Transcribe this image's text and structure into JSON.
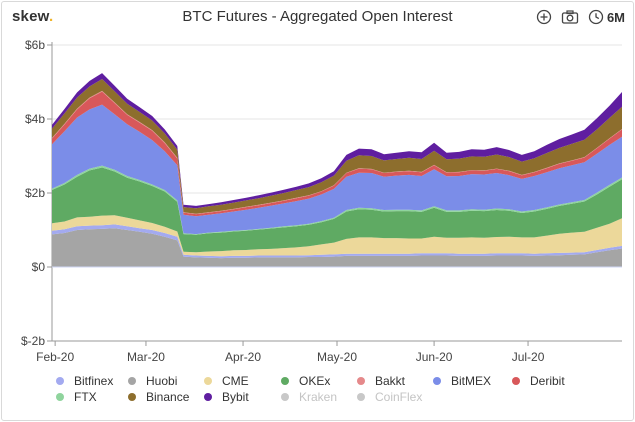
{
  "header": {
    "logo": "skew",
    "logo_dot": ".",
    "title": "BTC Futures - Aggregated Open Interest",
    "period": "6M",
    "icons": [
      "plus-circle-icon",
      "camera-icon",
      "clock-icon"
    ]
  },
  "legend": {
    "rows": [
      [
        {
          "label": "Bitfinex",
          "color": "#a3aaf0",
          "disabled": false
        },
        {
          "label": "Huobi",
          "color": "#a5a5a5",
          "disabled": false
        },
        {
          "label": "CME",
          "color": "#ecd89a",
          "disabled": false
        },
        {
          "label": "OKEx",
          "color": "#5faa63",
          "disabled": false
        },
        {
          "label": "Bakkt",
          "color": "#e5898b",
          "disabled": false
        },
        {
          "label": "BitMEX",
          "color": "#7b8de8",
          "disabled": false
        },
        {
          "label": "Deribit",
          "color": "#d8585a",
          "disabled": false
        }
      ],
      [
        {
          "label": "FTX",
          "color": "#8fd49d",
          "disabled": false
        },
        {
          "label": "Binance",
          "color": "#8d6e2d",
          "disabled": false
        },
        {
          "label": "Bybit",
          "color": "#5f1ea0",
          "disabled": false
        },
        {
          "label": "Kraken",
          "color": "#c8c8c8",
          "disabled": true
        },
        {
          "label": "CoinFlex",
          "color": "#c8c8c8",
          "disabled": true
        }
      ]
    ]
  },
  "chart_data": {
    "type": "area",
    "stacked": true,
    "title": "BTC Futures - Aggregated Open Interest",
    "xlabel": "",
    "ylabel": "",
    "x": [
      "2020-01-31",
      "2020-02-04",
      "2020-02-08",
      "2020-02-12",
      "2020-02-16",
      "2020-02-20",
      "2020-02-24",
      "2020-02-28",
      "2020-03-03",
      "2020-03-07",
      "2020-03-11",
      "2020-03-13",
      "2020-03-17",
      "2020-03-21",
      "2020-03-25",
      "2020-03-29",
      "2020-04-02",
      "2020-04-06",
      "2020-04-10",
      "2020-04-14",
      "2020-04-18",
      "2020-04-22",
      "2020-04-26",
      "2020-04-30",
      "2020-05-04",
      "2020-05-08",
      "2020-05-12",
      "2020-05-16",
      "2020-05-20",
      "2020-05-24",
      "2020-05-28",
      "2020-06-01",
      "2020-06-05",
      "2020-06-09",
      "2020-06-13",
      "2020-06-17",
      "2020-06-21",
      "2020-06-25",
      "2020-06-29",
      "2020-07-03",
      "2020-07-07",
      "2020-07-11",
      "2020-07-15",
      "2020-07-19",
      "2020-07-23",
      "2020-07-27",
      "2020-07-31"
    ],
    "x_ticks": [
      "Feb-20",
      "Mar-20",
      "Apr-20",
      "May-20",
      "Jun-20",
      "Jul-20"
    ],
    "y_ticks": [
      "$6b",
      "$4b",
      "$2b",
      "$0",
      "$-2b"
    ],
    "ylim": [
      -2,
      6
    ],
    "units": "USD billions",
    "grid": true,
    "legend_position": "bottom",
    "series": [
      {
        "name": "Huobi",
        "values": [
          0.88,
          0.92,
          1.0,
          1.02,
          1.03,
          1.05,
          1.0,
          0.95,
          0.9,
          0.82,
          0.72,
          0.28,
          0.26,
          0.25,
          0.24,
          0.25,
          0.25,
          0.26,
          0.26,
          0.26,
          0.26,
          0.27,
          0.27,
          0.28,
          0.3,
          0.3,
          0.3,
          0.3,
          0.3,
          0.3,
          0.31,
          0.31,
          0.31,
          0.3,
          0.3,
          0.3,
          0.31,
          0.31,
          0.31,
          0.3,
          0.31,
          0.32,
          0.33,
          0.34,
          0.4,
          0.45,
          0.5
        ]
      },
      {
        "name": "Bitfinex",
        "values": [
          0.1,
          0.1,
          0.1,
          0.1,
          0.1,
          0.1,
          0.1,
          0.1,
          0.1,
          0.1,
          0.1,
          0.05,
          0.05,
          0.05,
          0.05,
          0.05,
          0.05,
          0.05,
          0.05,
          0.05,
          0.05,
          0.05,
          0.06,
          0.06,
          0.06,
          0.06,
          0.06,
          0.06,
          0.06,
          0.06,
          0.06,
          0.06,
          0.06,
          0.06,
          0.06,
          0.06,
          0.06,
          0.06,
          0.06,
          0.06,
          0.06,
          0.06,
          0.06,
          0.06,
          0.06,
          0.07,
          0.07
        ]
      },
      {
        "name": "CME",
        "values": [
          0.2,
          0.21,
          0.24,
          0.24,
          0.26,
          0.25,
          0.23,
          0.21,
          0.19,
          0.17,
          0.14,
          0.08,
          0.09,
          0.12,
          0.14,
          0.15,
          0.16,
          0.17,
          0.18,
          0.2,
          0.22,
          0.24,
          0.28,
          0.32,
          0.4,
          0.44,
          0.44,
          0.42,
          0.42,
          0.41,
          0.4,
          0.45,
          0.42,
          0.43,
          0.44,
          0.43,
          0.44,
          0.45,
          0.43,
          0.44,
          0.48,
          0.52,
          0.54,
          0.55,
          0.6,
          0.65,
          0.75
        ]
      },
      {
        "name": "OKEx",
        "values": [
          0.9,
          1.0,
          1.1,
          1.25,
          1.3,
          1.18,
          1.08,
          1.05,
          1.0,
          0.95,
          0.8,
          0.48,
          0.47,
          0.49,
          0.5,
          0.51,
          0.52,
          0.53,
          0.55,
          0.56,
          0.57,
          0.58,
          0.6,
          0.64,
          0.74,
          0.76,
          0.75,
          0.72,
          0.73,
          0.74,
          0.72,
          0.78,
          0.7,
          0.7,
          0.72,
          0.72,
          0.73,
          0.7,
          0.66,
          0.7,
          0.72,
          0.75,
          0.78,
          0.82,
          0.9,
          1.0,
          1.05
        ]
      },
      {
        "name": "FTX",
        "values": [
          0.04,
          0.04,
          0.05,
          0.05,
          0.05,
          0.05,
          0.05,
          0.04,
          0.04,
          0.04,
          0.04,
          0.02,
          0.02,
          0.02,
          0.02,
          0.02,
          0.02,
          0.02,
          0.02,
          0.03,
          0.03,
          0.03,
          0.03,
          0.03,
          0.04,
          0.04,
          0.04,
          0.04,
          0.04,
          0.04,
          0.04,
          0.04,
          0.04,
          0.04,
          0.04,
          0.04,
          0.04,
          0.04,
          0.04,
          0.04,
          0.04,
          0.04,
          0.04,
          0.04,
          0.05,
          0.05,
          0.05
        ]
      },
      {
        "name": "BitMEX",
        "values": [
          1.2,
          1.4,
          1.55,
          1.6,
          1.65,
          1.5,
          1.4,
          1.3,
          1.2,
          1.05,
          0.95,
          0.5,
          0.48,
          0.48,
          0.5,
          0.52,
          0.55,
          0.57,
          0.6,
          0.62,
          0.65,
          0.68,
          0.72,
          0.78,
          0.9,
          0.95,
          0.95,
          0.9,
          0.92,
          0.94,
          0.93,
          1.0,
          0.92,
          0.93,
          0.95,
          0.95,
          0.96,
          0.92,
          0.88,
          0.92,
          0.95,
          0.98,
          1.0,
          1.02,
          1.05,
          1.08,
          1.1
        ]
      },
      {
        "name": "Deribit",
        "values": [
          0.15,
          0.18,
          0.22,
          0.3,
          0.35,
          0.3,
          0.25,
          0.25,
          0.25,
          0.22,
          0.18,
          0.06,
          0.06,
          0.06,
          0.06,
          0.06,
          0.07,
          0.07,
          0.07,
          0.07,
          0.08,
          0.08,
          0.08,
          0.09,
          0.1,
          0.11,
          0.1,
          0.1,
          0.1,
          0.1,
          0.1,
          0.11,
          0.1,
          0.1,
          0.1,
          0.1,
          0.11,
          0.11,
          0.1,
          0.1,
          0.11,
          0.12,
          0.12,
          0.13,
          0.15,
          0.17,
          0.2
        ]
      },
      {
        "name": "Bakkt",
        "values": [
          0.02,
          0.02,
          0.02,
          0.02,
          0.02,
          0.02,
          0.02,
          0.02,
          0.02,
          0.02,
          0.02,
          0.01,
          0.01,
          0.01,
          0.01,
          0.01,
          0.01,
          0.01,
          0.01,
          0.01,
          0.01,
          0.01,
          0.01,
          0.01,
          0.01,
          0.01,
          0.01,
          0.01,
          0.01,
          0.01,
          0.01,
          0.01,
          0.01,
          0.01,
          0.01,
          0.01,
          0.01,
          0.01,
          0.01,
          0.01,
          0.01,
          0.01,
          0.01,
          0.01,
          0.01,
          0.01,
          0.01
        ]
      },
      {
        "name": "Binance",
        "values": [
          0.25,
          0.28,
          0.3,
          0.3,
          0.32,
          0.3,
          0.28,
          0.27,
          0.26,
          0.24,
          0.22,
          0.14,
          0.15,
          0.16,
          0.16,
          0.17,
          0.17,
          0.18,
          0.19,
          0.2,
          0.21,
          0.22,
          0.24,
          0.26,
          0.32,
          0.35,
          0.35,
          0.33,
          0.34,
          0.35,
          0.35,
          0.38,
          0.35,
          0.36,
          0.37,
          0.37,
          0.38,
          0.37,
          0.36,
          0.37,
          0.4,
          0.42,
          0.45,
          0.47,
          0.5,
          0.55,
          0.6
        ]
      },
      {
        "name": "Bybit",
        "values": [
          0.1,
          0.12,
          0.14,
          0.15,
          0.16,
          0.15,
          0.14,
          0.13,
          0.12,
          0.11,
          0.1,
          0.06,
          0.06,
          0.06,
          0.07,
          0.07,
          0.07,
          0.08,
          0.08,
          0.09,
          0.09,
          0.1,
          0.11,
          0.12,
          0.16,
          0.18,
          0.18,
          0.17,
          0.17,
          0.18,
          0.18,
          0.22,
          0.18,
          0.18,
          0.19,
          0.19,
          0.2,
          0.19,
          0.18,
          0.19,
          0.22,
          0.24,
          0.25,
          0.27,
          0.3,
          0.33,
          0.4
        ]
      }
    ]
  }
}
